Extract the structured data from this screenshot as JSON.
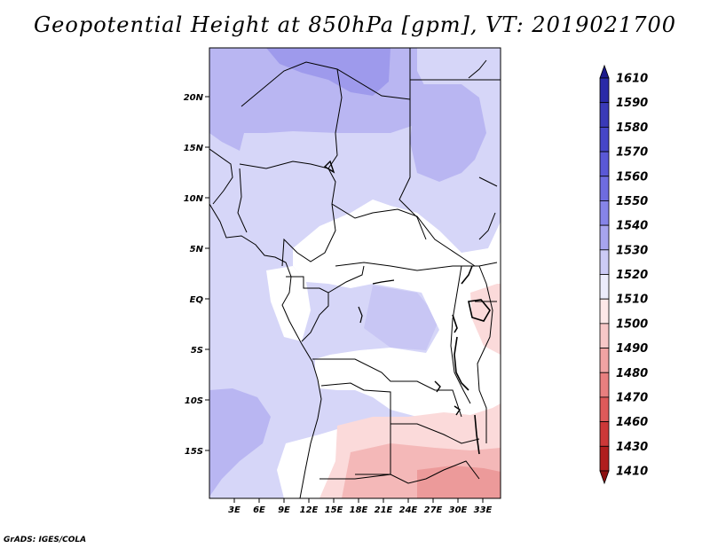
{
  "title": "Geopotential Height at 850hPa [gpm], VT: 2019021700",
  "credit": "GrADS: IGES/COLA",
  "latitude_labels": [
    "20N",
    "15N",
    "10N",
    "5N",
    "EQ",
    "5S",
    "10S",
    "15S"
  ],
  "longitude_labels": [
    "3E",
    "6E",
    "9E",
    "12E",
    "15E",
    "18E",
    "21E",
    "24E",
    "27E",
    "30E",
    "33E"
  ],
  "colorbar": {
    "levels": [
      "1610",
      "1590",
      "1580",
      "1570",
      "1560",
      "1550",
      "1540",
      "1530",
      "1520",
      "1510",
      "1500",
      "1490",
      "1480",
      "1470",
      "1460",
      "1430",
      "1410"
    ],
    "colors": [
      "#1c1a8c",
      "#2a2aa8",
      "#3a3ab8",
      "#4646c8",
      "#5a58d6",
      "#6e6ce0",
      "#8684e8",
      "#a7a4ee",
      "#cccbf5",
      "#ececfb",
      "#fde8e8",
      "#f7c7c7",
      "#f0a3a3",
      "#e87f7f",
      "#de5a5a",
      "#cc3838",
      "#b01e1e",
      "#8c1010"
    ]
  },
  "map_colors": {
    "light_purple": "#d6d6f8",
    "mid_purple": "#b9b6f2",
    "deep_purple": "#9e9aec",
    "white": "#ffffff",
    "light_pink": "#fbdada",
    "pink": "#f4b8b8",
    "deep_pink": "#ec9a9a"
  }
}
